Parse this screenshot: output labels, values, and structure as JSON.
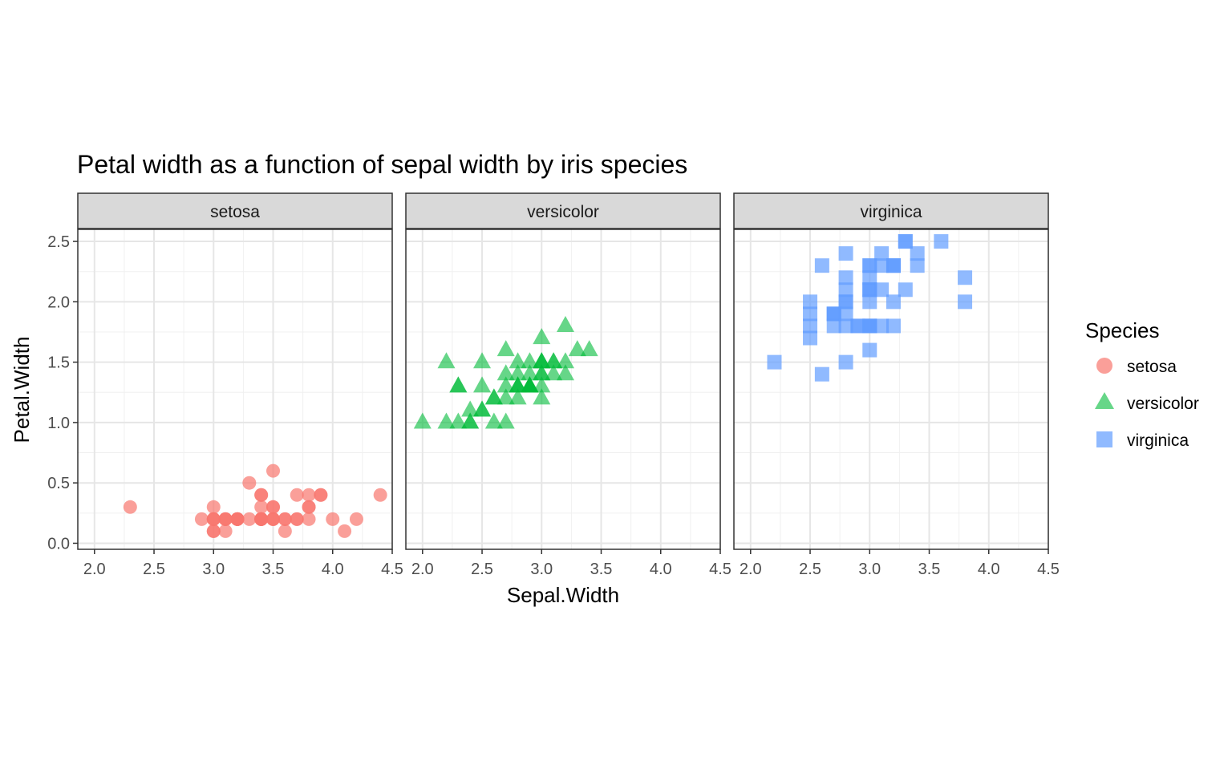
{
  "chart_data": {
    "type": "scatter",
    "title": "Petal width as a function of sepal width by iris species",
    "xlabel": "Sepal.Width",
    "ylabel": "Petal.Width",
    "xlim": [
      1.86,
      4.5
    ],
    "ylim": [
      -0.05,
      2.6
    ],
    "x_ticks": [
      "2.0",
      "2.5",
      "3.0",
      "3.5",
      "4.0",
      "4.5"
    ],
    "y_ticks": [
      "0.0",
      "0.5",
      "1.0",
      "1.5",
      "2.0",
      "2.5"
    ],
    "grid": true,
    "legend_title": "Species",
    "legend_position": "right",
    "series": [
      {
        "name": "setosa",
        "color": "#F8766D",
        "shape": "circle",
        "points": [
          [
            3.5,
            0.2
          ],
          [
            3.0,
            0.2
          ],
          [
            3.2,
            0.2
          ],
          [
            3.1,
            0.2
          ],
          [
            3.6,
            0.2
          ],
          [
            3.9,
            0.4
          ],
          [
            3.4,
            0.3
          ],
          [
            3.4,
            0.2
          ],
          [
            2.9,
            0.2
          ],
          [
            3.1,
            0.1
          ],
          [
            3.7,
            0.2
          ],
          [
            3.4,
            0.2
          ],
          [
            3.0,
            0.1
          ],
          [
            3.0,
            0.1
          ],
          [
            4.0,
            0.2
          ],
          [
            4.4,
            0.4
          ],
          [
            3.9,
            0.4
          ],
          [
            3.5,
            0.3
          ],
          [
            3.8,
            0.3
          ],
          [
            3.8,
            0.3
          ],
          [
            3.4,
            0.2
          ],
          [
            3.7,
            0.4
          ],
          [
            3.6,
            0.2
          ],
          [
            3.3,
            0.5
          ],
          [
            3.4,
            0.2
          ],
          [
            3.0,
            0.2
          ],
          [
            3.4,
            0.4
          ],
          [
            3.5,
            0.2
          ],
          [
            3.4,
            0.2
          ],
          [
            3.2,
            0.2
          ],
          [
            3.1,
            0.2
          ],
          [
            3.4,
            0.4
          ],
          [
            4.1,
            0.1
          ],
          [
            4.2,
            0.2
          ],
          [
            3.1,
            0.2
          ],
          [
            3.2,
            0.2
          ],
          [
            3.5,
            0.2
          ],
          [
            3.6,
            0.1
          ],
          [
            3.0,
            0.2
          ],
          [
            3.4,
            0.2
          ],
          [
            3.5,
            0.3
          ],
          [
            2.3,
            0.3
          ],
          [
            3.2,
            0.2
          ],
          [
            3.5,
            0.6
          ],
          [
            3.8,
            0.4
          ],
          [
            3.0,
            0.3
          ],
          [
            3.8,
            0.2
          ],
          [
            3.2,
            0.2
          ],
          [
            3.7,
            0.2
          ],
          [
            3.3,
            0.2
          ]
        ]
      },
      {
        "name": "versicolor",
        "color": "#00BA38",
        "shape": "triangle",
        "points": [
          [
            3.2,
            1.4
          ],
          [
            3.2,
            1.5
          ],
          [
            3.1,
            1.5
          ],
          [
            2.3,
            1.3
          ],
          [
            2.8,
            1.5
          ],
          [
            2.8,
            1.3
          ],
          [
            3.3,
            1.6
          ],
          [
            2.4,
            1.0
          ],
          [
            2.9,
            1.3
          ],
          [
            2.7,
            1.4
          ],
          [
            2.0,
            1.0
          ],
          [
            3.0,
            1.5
          ],
          [
            2.2,
            1.0
          ],
          [
            2.9,
            1.4
          ],
          [
            2.9,
            1.3
          ],
          [
            3.1,
            1.4
          ],
          [
            3.0,
            1.5
          ],
          [
            2.7,
            1.0
          ],
          [
            2.2,
            1.5
          ],
          [
            2.5,
            1.1
          ],
          [
            3.2,
            1.8
          ],
          [
            2.8,
            1.3
          ],
          [
            2.5,
            1.5
          ],
          [
            2.8,
            1.2
          ],
          [
            2.9,
            1.3
          ],
          [
            3.0,
            1.4
          ],
          [
            2.8,
            1.4
          ],
          [
            3.0,
            1.7
          ],
          [
            2.9,
            1.5
          ],
          [
            2.6,
            1.0
          ],
          [
            2.4,
            1.1
          ],
          [
            2.4,
            1.0
          ],
          [
            2.7,
            1.2
          ],
          [
            2.7,
            1.6
          ],
          [
            3.0,
            1.5
          ],
          [
            3.4,
            1.6
          ],
          [
            3.1,
            1.5
          ],
          [
            2.3,
            1.3
          ],
          [
            3.0,
            1.3
          ],
          [
            2.5,
            1.3
          ],
          [
            2.6,
            1.2
          ],
          [
            3.0,
            1.4
          ],
          [
            2.6,
            1.2
          ],
          [
            2.3,
            1.0
          ],
          [
            2.7,
            1.3
          ],
          [
            3.0,
            1.2
          ],
          [
            2.9,
            1.3
          ],
          [
            2.9,
            1.3
          ],
          [
            2.5,
            1.1
          ],
          [
            2.8,
            1.3
          ]
        ]
      },
      {
        "name": "virginica",
        "color": "#619CFF",
        "shape": "square",
        "points": [
          [
            3.3,
            2.5
          ],
          [
            2.7,
            1.9
          ],
          [
            3.0,
            2.1
          ],
          [
            2.9,
            1.8
          ],
          [
            3.0,
            2.2
          ],
          [
            3.0,
            2.1
          ],
          [
            2.5,
            1.7
          ],
          [
            2.9,
            1.8
          ],
          [
            2.5,
            1.8
          ],
          [
            3.6,
            2.5
          ],
          [
            3.2,
            2.0
          ],
          [
            2.7,
            1.9
          ],
          [
            3.0,
            2.1
          ],
          [
            2.5,
            2.0
          ],
          [
            2.8,
            2.4
          ],
          [
            3.2,
            2.3
          ],
          [
            3.0,
            1.8
          ],
          [
            3.8,
            2.2
          ],
          [
            2.6,
            2.3
          ],
          [
            2.2,
            1.5
          ],
          [
            3.2,
            2.3
          ],
          [
            2.8,
            2.0
          ],
          [
            2.8,
            2.0
          ],
          [
            2.7,
            1.8
          ],
          [
            3.3,
            2.1
          ],
          [
            3.2,
            1.8
          ],
          [
            2.8,
            1.8
          ],
          [
            3.0,
            1.8
          ],
          [
            2.8,
            2.1
          ],
          [
            3.0,
            1.6
          ],
          [
            2.8,
            1.9
          ],
          [
            3.8,
            2.0
          ],
          [
            2.8,
            2.2
          ],
          [
            2.8,
            1.5
          ],
          [
            2.6,
            1.4
          ],
          [
            3.0,
            2.3
          ],
          [
            3.4,
            2.4
          ],
          [
            3.1,
            1.8
          ],
          [
            3.0,
            1.8
          ],
          [
            3.1,
            2.1
          ],
          [
            3.1,
            2.4
          ],
          [
            3.1,
            2.3
          ],
          [
            2.7,
            1.9
          ],
          [
            3.2,
            2.3
          ],
          [
            3.3,
            2.5
          ],
          [
            3.0,
            2.3
          ],
          [
            2.5,
            1.9
          ],
          [
            3.0,
            2.0
          ],
          [
            3.4,
            2.3
          ],
          [
            3.0,
            1.8
          ]
        ]
      }
    ]
  }
}
